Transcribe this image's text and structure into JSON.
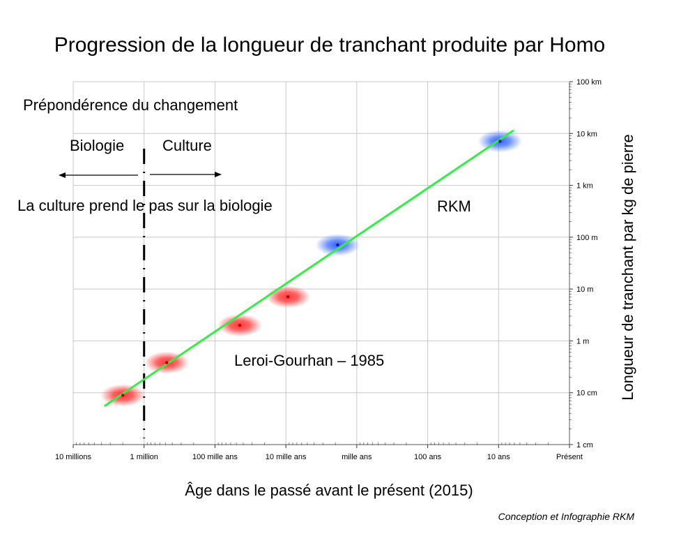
{
  "chart_data": {
    "type": "scatter",
    "title": "Progression de la longueur de tranchant produite par Homo",
    "xlabel": "Âge dans le passé avant le présent (2015)",
    "ylabel": "Longueur de tranchant par kg de pierre",
    "x_scale": "log (years before present)",
    "x_ticks": [
      {
        "label": "10 millions",
        "log10_years": 7
      },
      {
        "label": "1 million",
        "log10_years": 6
      },
      {
        "label": "100 mille ans",
        "log10_years": 5
      },
      {
        "label": "10 mille ans",
        "log10_years": 4
      },
      {
        "label": "mille ans",
        "log10_years": 3
      },
      {
        "label": "100 ans",
        "log10_years": 2
      },
      {
        "label": "10 ans",
        "log10_years": 1
      },
      {
        "label": "Présent",
        "log10_years": 0
      }
    ],
    "y_scale": "log (centimetres)",
    "y_ticks": [
      {
        "label": "1 cm",
        "log10_cm": 0
      },
      {
        "label": "10 cm",
        "log10_cm": 1
      },
      {
        "label": "1 m",
        "log10_cm": 2
      },
      {
        "label": "10 m",
        "log10_cm": 3
      },
      {
        "label": "100 m",
        "log10_cm": 4
      },
      {
        "label": "1 km",
        "log10_cm": 5
      },
      {
        "label": "10 km",
        "log10_cm": 6
      },
      {
        "label": "100 km",
        "log10_cm": 7
      }
    ],
    "series": [
      {
        "name": "Leroi-Gourhan – 1985",
        "color": "#ff2222",
        "points": [
          {
            "log10_years": 6.3,
            "log10_cm": 0.95
          },
          {
            "log10_years": 5.68,
            "log10_cm": 1.58
          },
          {
            "log10_years": 4.65,
            "log10_cm": 2.3
          },
          {
            "log10_years": 3.97,
            "log10_cm": 2.85
          }
        ]
      },
      {
        "name": "RKM",
        "color": "#2244ff",
        "points": [
          {
            "log10_years": 3.27,
            "log10_cm": 3.85
          },
          {
            "log10_years": 0.98,
            "log10_cm": 5.85
          }
        ]
      }
    ],
    "trend_line": {
      "color": "#33ee44",
      "from": {
        "log10_years": 6.55,
        "log10_cm": 0.75
      },
      "to": {
        "log10_years": 0.8,
        "log10_cm": 6.05
      }
    },
    "divider": {
      "log10_years": 6.0,
      "style": "dashed"
    },
    "annotations": {
      "preponderance": "Prépondérence du changement",
      "biologie": "Biologie",
      "culture": "Culture",
      "culture_over_biology": "La culture prend le pas sur la biologie",
      "rkm": "RKM",
      "leroi": "Leroi-Gourhan – 1985"
    },
    "credit": "Conception et Infographie RKM",
    "grid": true
  }
}
